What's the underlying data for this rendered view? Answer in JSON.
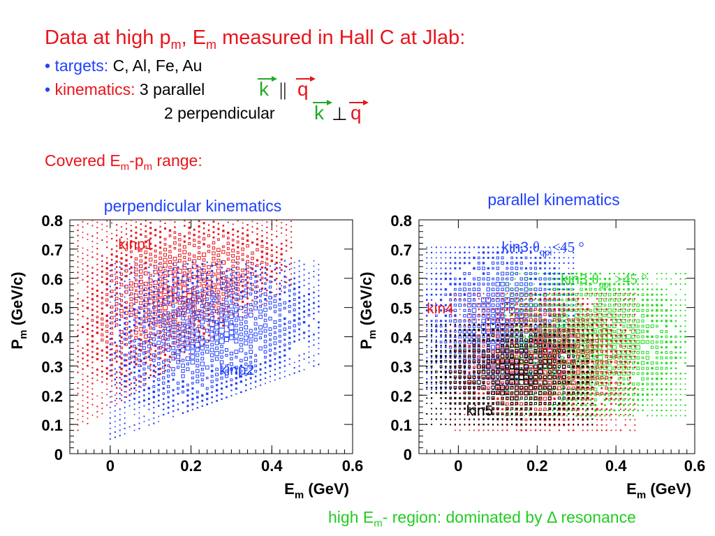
{
  "heading": {
    "prefix": "Data at high p",
    "sub1": "m",
    "mid": ", E",
    "sub2": "m",
    "suffix": " measured in Hall C at Jlab:"
  },
  "targets": {
    "bullet": "•",
    "label": "targets:",
    "value": "C, Al, Fe, Au"
  },
  "kinematics": {
    "bullet": "•",
    "label": "kinematics:",
    "parallel": "3 parallel",
    "perpendicular": "2 perpendicular",
    "k": "k",
    "q": "q",
    "parallel_symbol": "||",
    "perp_symbol": "⊥"
  },
  "covered": {
    "prefix": "Covered E",
    "sub1": "m",
    "mid": "-p",
    "sub2": "m",
    "suffix": " range:"
  },
  "footer": {
    "prefix": "high E",
    "sub": "m",
    "suffix": "- region: dominated by Δ resonance"
  },
  "colors": {
    "kinp1": "#e8141b",
    "kinp2": "#2040ff",
    "kin3_small": "#2040ff",
    "kin3_large": "#22dd22",
    "kin4": "#e8141b",
    "kin5": "#000000"
  },
  "chart_data": [
    {
      "type": "scatter",
      "title": "perpendicular kinematics",
      "xlabel": "E",
      "xlabel_sub": "m",
      "xlabel_unit": "(GeV)",
      "ylabel": "P",
      "ylabel_sub": "m",
      "ylabel_unit": "(GeV/c)",
      "xlim": [
        -0.1,
        0.6
      ],
      "ylim": [
        0,
        0.8
      ],
      "xticks": [
        "0",
        "0.2",
        "0.4",
        "0.6"
      ],
      "yticks": [
        "0",
        "0.1",
        "0.2",
        "0.3",
        "0.4",
        "0.5",
        "0.6",
        "0.7",
        "0.8"
      ],
      "series": [
        {
          "name": "kinp1",
          "color": "#e8141b",
          "region": {
            "x_from": -0.08,
            "x_to": 0.45,
            "y_bottom_at_x_from": 0.08,
            "y_slope": 1.05,
            "y_top": 0.8
          }
        },
        {
          "name": "kinp2",
          "color": "#2040ff",
          "region": {
            "x_from": 0.0,
            "x_to": 0.52,
            "y_bottom_at_x_from": 0.05,
            "y_slope": 0.55,
            "y_top": 0.66
          }
        }
      ],
      "annotations": [
        {
          "text": "kinp1",
          "x": 0.02,
          "y": 0.7,
          "color": "#e8141b"
        },
        {
          "text": "kinp2",
          "x": 0.27,
          "y": 0.27,
          "color": "#2040ff"
        }
      ]
    },
    {
      "type": "scatter",
      "title": "parallel kinematics",
      "xlabel": "E",
      "xlabel_sub": "m",
      "xlabel_unit": "(GeV)",
      "ylabel": "P",
      "ylabel_sub": "m",
      "ylabel_unit": "(GeV/c)",
      "xlim": [
        -0.1,
        0.6
      ],
      "ylim": [
        0,
        0.8
      ],
      "xticks": [
        "0",
        "0.2",
        "0.4",
        "0.6"
      ],
      "yticks": [
        "0",
        "0.1",
        "0.2",
        "0.3",
        "0.4",
        "0.5",
        "0.6",
        "0.7",
        "0.8"
      ],
      "series": [
        {
          "name": "kin3,θqpi<45 °",
          "color": "#2040ff",
          "region": {
            "x_from": -0.08,
            "x_to": 0.3,
            "y_bottom": 0.22,
            "y_top": 0.72
          }
        },
        {
          "name": "kin3,θqpi >45 °",
          "color": "#22dd22",
          "region": {
            "x_from": 0.12,
            "x_to": 0.58,
            "y_bottom": 0.13,
            "y_top": 0.62
          }
        },
        {
          "name": "kin4",
          "color": "#e8141b",
          "region": {
            "x_from": -0.02,
            "x_to": 0.45,
            "y_bottom": 0.08,
            "y_top": 0.55
          }
        },
        {
          "name": "kin5",
          "color": "#000000",
          "region": {
            "x_from": -0.08,
            "x_to": 0.35,
            "y_bottom": 0.1,
            "y_top": 0.45
          }
        }
      ],
      "annotations": [
        {
          "text": "kin3,",
          "theta": "θ",
          "sub": "qpi",
          "rest": "<45 °",
          "x": 0.11,
          "y": 0.69,
          "color": "#2040ff"
        },
        {
          "text": "kin3,",
          "theta": "θ",
          "sub": "qpi",
          "rest": " >45 °",
          "x": 0.26,
          "y": 0.58,
          "color": "#22dd22"
        },
        {
          "text": "kin4",
          "x": -0.08,
          "y": 0.48,
          "color": "#e8141b"
        },
        {
          "text": "kin5",
          "x": 0.02,
          "y": 0.13,
          "color": "#000000"
        }
      ]
    }
  ]
}
